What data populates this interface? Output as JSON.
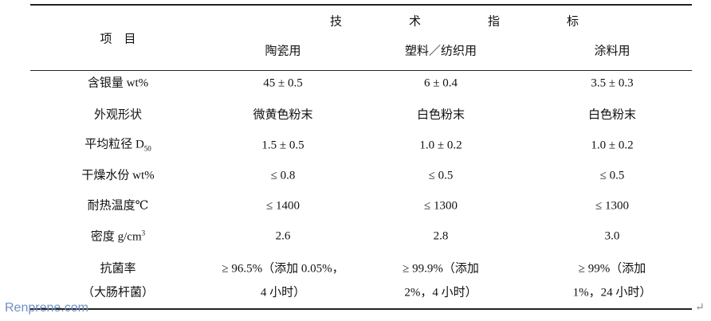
{
  "table": {
    "group_header": "技术指标",
    "item_header": "项　目",
    "columns": [
      "陶瓷用",
      "塑料／纺织用",
      "涂料用"
    ],
    "rows": [
      [
        {
          "text": "含银量 wt%"
        },
        {
          "text": "45 ± 0.5"
        },
        {
          "text": "6 ± 0.4"
        },
        {
          "text": "3.5 ± 0.3"
        }
      ],
      [
        {
          "text": "外观形状"
        },
        {
          "text": "微黄色粉末"
        },
        {
          "text": "白色粉末"
        },
        {
          "text": "白色粉末"
        }
      ],
      [
        {
          "text": "平均粒径 D",
          "sub": "50"
        },
        {
          "text": "1.5 ± 0.5"
        },
        {
          "text": "1.0 ± 0.2"
        },
        {
          "text": "1.0 ± 0.2"
        }
      ],
      [
        {
          "text": "干燥水份 wt%"
        },
        {
          "text": "≤ 0.8"
        },
        {
          "text": "≤ 0.5"
        },
        {
          "text": "≤ 0.5"
        }
      ],
      [
        {
          "text": "耐热温度℃"
        },
        {
          "text": "≤ 1400"
        },
        {
          "text": "≤ 1300"
        },
        {
          "text": "≤ 1300"
        }
      ],
      [
        {
          "text": "密度 g/cm",
          "sup": "3"
        },
        {
          "text": "2.6"
        },
        {
          "text": "2.8"
        },
        {
          "text": "3.0"
        }
      ],
      [
        {
          "lines": [
            "抗菌率",
            "（大肠杆菌）"
          ]
        },
        {
          "lines": [
            "≥ 96.5%（添加 0.05%，",
            "4 小时）"
          ]
        },
        {
          "lines": [
            "≥ 99.9%（添加",
            "2%，4 小时）"
          ]
        },
        {
          "lines": [
            "≥ 99%（添加",
            "1%，24 小时）"
          ]
        }
      ]
    ]
  },
  "watermark": "Renprene.com",
  "paragraph_mark": "↵"
}
